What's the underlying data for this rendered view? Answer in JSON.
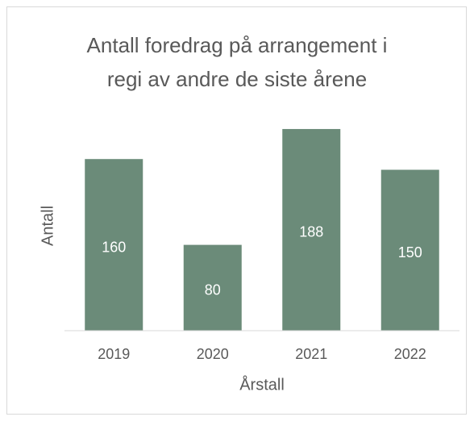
{
  "chart_data": {
    "type": "bar",
    "title": [
      "Antall foredrag på arrangement i",
      "regi av andre de siste årene"
    ],
    "x_label": "Årstall",
    "y_label": "Antall",
    "categories": [
      "2019",
      "2020",
      "2021",
      "2022"
    ],
    "values": [
      160,
      80,
      188,
      150
    ],
    "color": "#6b8b79",
    "ylim": [
      0,
      200
    ],
    "data_labels": true
  }
}
